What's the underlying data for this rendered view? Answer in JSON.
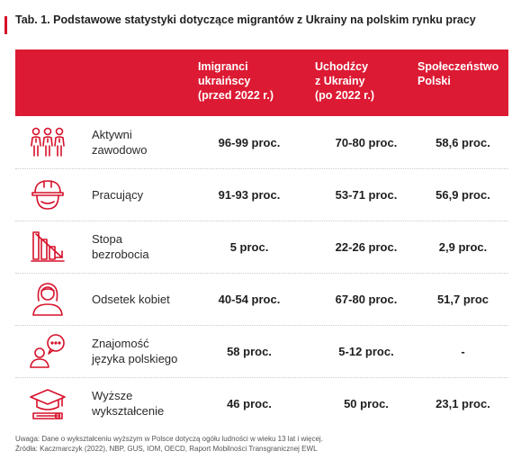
{
  "title": "Tab. 1. Podstawowe statystyki dotyczące migrantów z Ukrainy na polskim rynku pracy",
  "columns": [
    "Imigranci\nukraińscy\n(przed 2022 r.)",
    "Uchodźcy\nz Ukrainy\n(po 2022 r.)",
    "Społeczeństwo\nPolski"
  ],
  "rows": [
    {
      "label": "Aktywni\nzawodowo",
      "icon": "people-group-icon",
      "values": [
        "96-99 proc.",
        "70-80 proc.",
        "58,6 proc."
      ]
    },
    {
      "label": "Pracujący",
      "icon": "hard-hat-icon",
      "values": [
        "91-93 proc.",
        "53-71 proc.",
        "56,9 proc."
      ]
    },
    {
      "label": "Stopa\nbezrobocia",
      "icon": "declining-bars-icon",
      "values": [
        "5 proc.",
        "22-26 proc.",
        "2,9 proc."
      ]
    },
    {
      "label": "Odsetek kobiet",
      "icon": "woman-icon",
      "values": [
        "40-54 proc.",
        "67-80 proc.",
        "51,7 proc"
      ]
    },
    {
      "label": "Znajomość\njęzyka polskiego",
      "icon": "speech-bubble-person-icon",
      "values": [
        "58 proc.",
        "5-12 proc.",
        "-"
      ]
    },
    {
      "label": "Wyższe\nwykształcenie",
      "icon": "graduation-cap-icon",
      "values": [
        "46 proc.",
        "50 proc.",
        "23,1 proc."
      ]
    }
  ],
  "footnote": {
    "note": "Uwaga: Dane o wykształceniu wyższym w Polsce dotyczą ogółu ludności w wieku 13 lat i więcej.",
    "sources": "Źródła: Kaczmarczyk (2022), NBP, GUS, IOM, OECD, Raport Mobilności Transgranicznej EWL"
  },
  "colors": {
    "accent": "#dc1a33",
    "text": "#1f1f1f"
  }
}
